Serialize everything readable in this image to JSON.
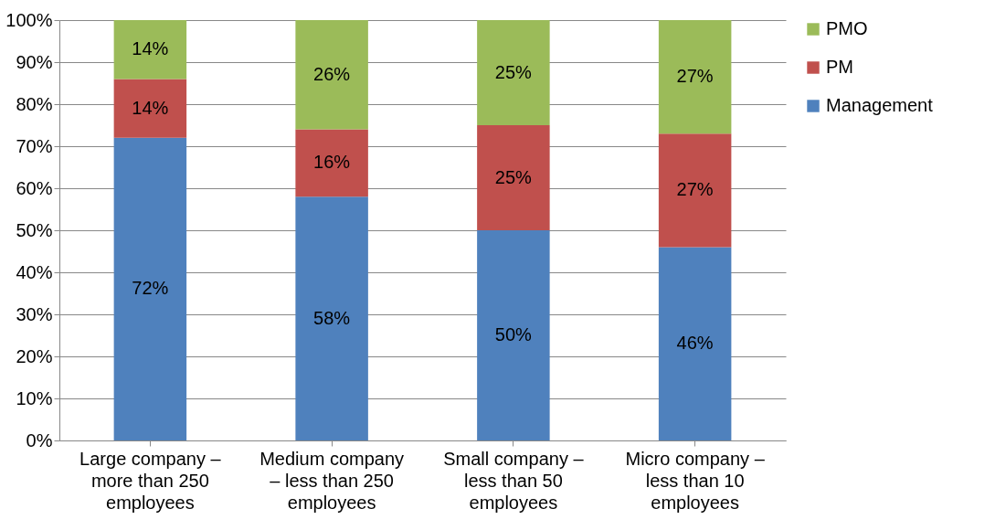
{
  "chart_data": {
    "type": "bar",
    "stacked": true,
    "categories": [
      "Large company – more than 250 employees",
      "Medium company – less than 250 employees",
      "Small company – less than 50 employees",
      "Micro company – less than 10 employees"
    ],
    "series": [
      {
        "name": "Management",
        "color": "#4f81bd",
        "values": [
          72,
          58,
          50,
          46
        ],
        "value_labels": [
          "72%",
          "58%",
          "50%",
          "46%"
        ]
      },
      {
        "name": "PM",
        "color": "#c0504d",
        "values": [
          14,
          16,
          25,
          27
        ],
        "value_labels": [
          "14%",
          "16%",
          "25%",
          "27%"
        ]
      },
      {
        "name": "PMO",
        "color": "#9bbb59",
        "values": [
          14,
          26,
          25,
          27
        ],
        "value_labels": [
          "14%",
          "26%",
          "25%",
          "27%"
        ]
      }
    ],
    "ylim": [
      0,
      100
    ],
    "yticks": [
      {
        "value": 0,
        "label": "0%"
      },
      {
        "value": 10,
        "label": "10%"
      },
      {
        "value": 20,
        "label": "20%"
      },
      {
        "value": 30,
        "label": "30%"
      },
      {
        "value": 40,
        "label": "40%"
      },
      {
        "value": 50,
        "label": "50%"
      },
      {
        "value": 60,
        "label": "60%"
      },
      {
        "value": 70,
        "label": "70%"
      },
      {
        "value": 80,
        "label": "80%"
      },
      {
        "value": 90,
        "label": "90%"
      },
      {
        "value": 100,
        "label": "100%"
      }
    ],
    "grid": "y",
    "legend": "right"
  }
}
